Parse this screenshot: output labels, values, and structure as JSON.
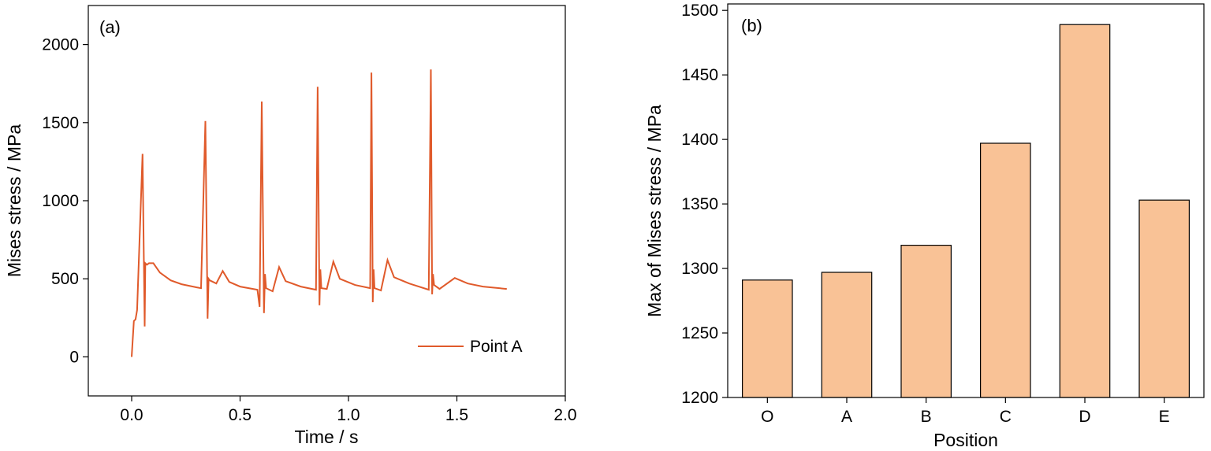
{
  "colors": {
    "line": "#e05a2b",
    "bar_fill": "#f9c296"
  },
  "chart_data": [
    {
      "type": "line",
      "panel_label": "(a)",
      "xlabel": "Time / s",
      "ylabel": "Mises stress / MPa",
      "xlim": [
        -0.2,
        2.0
      ],
      "ylim": [
        -250,
        2250
      ],
      "xticks": [
        0.0,
        0.5,
        1.0,
        1.5,
        2.0
      ],
      "xtick_labels": [
        "0.0",
        "0.5",
        "1.0",
        "1.5",
        "2.0"
      ],
      "yticks": [
        0,
        500,
        1000,
        1500,
        2000
      ],
      "ytick_labels": [
        "0",
        "500",
        "1000",
        "1500",
        "2000"
      ],
      "legend_position": "bottom-right",
      "grid": false,
      "series": [
        {
          "name": "Point A",
          "x": [
            0.0,
            0.01,
            0.018,
            0.025,
            0.05,
            0.06,
            0.063,
            0.07,
            0.08,
            0.1,
            0.13,
            0.18,
            0.23,
            0.3,
            0.32,
            0.34,
            0.35,
            0.355,
            0.36,
            0.39,
            0.42,
            0.45,
            0.5,
            0.58,
            0.59,
            0.6,
            0.61,
            0.615,
            0.62,
            0.65,
            0.68,
            0.71,
            0.78,
            0.85,
            0.858,
            0.866,
            0.87,
            0.875,
            0.9,
            0.93,
            0.96,
            1.03,
            1.1,
            1.106,
            1.112,
            1.116,
            1.12,
            1.15,
            1.18,
            1.21,
            1.28,
            1.37,
            1.38,
            1.386,
            1.39,
            1.395,
            1.42,
            1.49,
            1.55,
            1.62,
            1.73
          ],
          "y": [
            0,
            230,
            240,
            300,
            1300,
            195,
            600,
            590,
            600,
            600,
            540,
            490,
            465,
            445,
            440,
            1510,
            245,
            500,
            490,
            470,
            550,
            480,
            450,
            430,
            320,
            1635,
            280,
            530,
            440,
            420,
            575,
            485,
            450,
            430,
            1730,
            330,
            560,
            440,
            435,
            610,
            500,
            460,
            440,
            1820,
            350,
            560,
            440,
            425,
            620,
            510,
            470,
            430,
            1840,
            400,
            530,
            460,
            435,
            505,
            470,
            450,
            435
          ]
        }
      ]
    },
    {
      "type": "bar",
      "panel_label": "(b)",
      "xlabel": "Position",
      "ylabel": "Max of Mises stress / MPa",
      "categories": [
        "O",
        "A",
        "B",
        "C",
        "D",
        "E"
      ],
      "values": [
        1291,
        1297,
        1318,
        1397,
        1489,
        1353
      ],
      "ylim": [
        1200,
        1505
      ],
      "yticks": [
        1200,
        1250,
        1300,
        1350,
        1400,
        1450,
        1500
      ],
      "ytick_labels": [
        "1200",
        "1250",
        "1300",
        "1350",
        "1400",
        "1450",
        "1500"
      ],
      "grid": false
    }
  ]
}
